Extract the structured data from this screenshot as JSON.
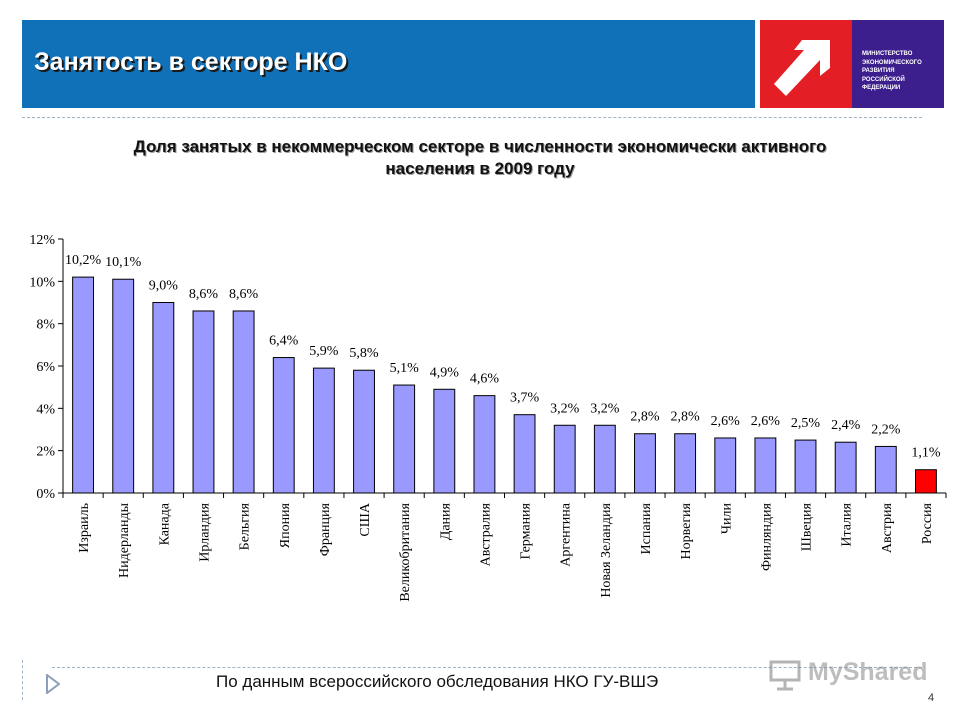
{
  "header": {
    "title": "Занятость в секторе НКО",
    "logo_lines": [
      "МИНИСТЕРСТВО",
      "ЭКОНОМИЧЕСКОГО",
      "РАЗВИТИЯ",
      "РОССИЙСКОЙ",
      "ФЕДЕРАЦИИ"
    ]
  },
  "colors": {
    "header_blue": "#1070b8",
    "logo_red": "#e31e24",
    "logo_purple": "#3c1f8c",
    "bar_default": "#9999ff",
    "bar_highlight": "#ff0000"
  },
  "chart_data": {
    "type": "bar",
    "title": "Доля занятых в некоммерческом секторе в численности экономически активного населения в 2009 году",
    "title_lines": [
      "Доля занятых в некоммерческом секторе в численности экономически активного",
      "населения в 2009 году"
    ],
    "categories": [
      "Израиль",
      "Нидерланды",
      "Канада",
      "Ирландия",
      "Бельгия",
      "Япония",
      "Франция",
      "США",
      "Великобритания",
      "Дания",
      "Австралия",
      "Германия",
      "Аргентина",
      "Новая Зеландия",
      "Испания",
      "Норвегия",
      "Чили",
      "Финляндия",
      "Швеция",
      "Италия",
      "Австрия",
      "Россия"
    ],
    "values": [
      10.2,
      10.1,
      9.0,
      8.6,
      8.6,
      6.4,
      5.9,
      5.8,
      5.1,
      4.9,
      4.6,
      3.7,
      3.2,
      3.2,
      2.8,
      2.8,
      2.6,
      2.6,
      2.5,
      2.4,
      2.2,
      1.1
    ],
    "data_labels": [
      "10,2%",
      "10,1%",
      "9,0%",
      "8,6%",
      "8,6%",
      "6,4%",
      "5,9%",
      "5,8%",
      "5,1%",
      "4,9%",
      "4,6%",
      "3,7%",
      "3,2%",
      "3,2%",
      "2,8%",
      "2,8%",
      "2,6%",
      "2,6%",
      "2,5%",
      "2,4%",
      "2,2%",
      "1,1%"
    ],
    "highlight_index": 21,
    "ylim": [
      0,
      12
    ],
    "yticks": [
      0,
      2,
      4,
      6,
      8,
      10,
      12
    ],
    "ytick_labels": [
      "0%",
      "2%",
      "4%",
      "6%",
      "8%",
      "10%",
      "12%"
    ],
    "xlabel": "",
    "ylabel": "",
    "grid": false,
    "legend": false
  },
  "footer": {
    "source": "По данным всероссийского обследования НКО ГУ-ВШЭ",
    "watermark": "MyShared",
    "page_number": "4"
  }
}
